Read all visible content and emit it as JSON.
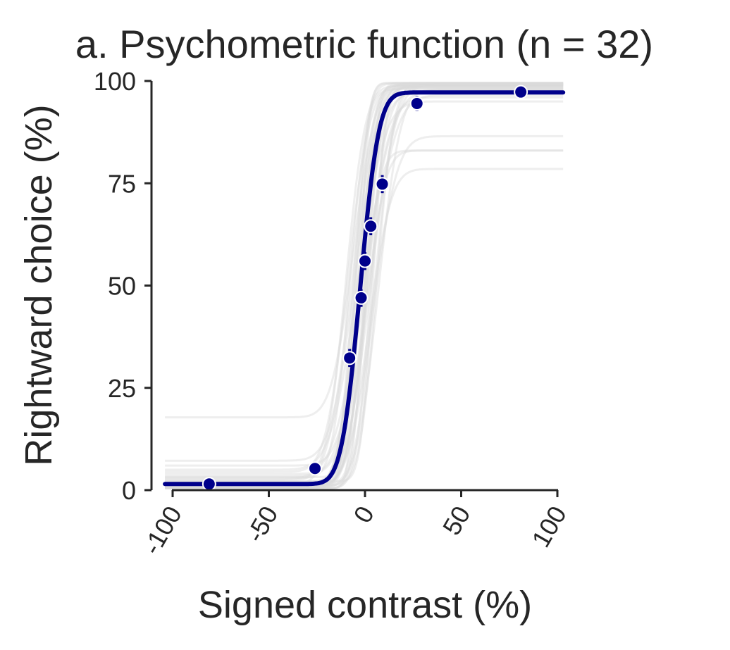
{
  "chart_data": {
    "type": "line",
    "title": "a. Psychometric function (n = 32)",
    "xlabel": "Signed contrast (%)",
    "ylabel": "Rightward choice (%)",
    "xlim": [
      -100,
      100
    ],
    "ylim": [
      0,
      100
    ],
    "xticks": [
      "-100",
      "-50",
      "0",
      "50",
      "100"
    ],
    "yticks": [
      "0",
      "25",
      "50",
      "75",
      "100"
    ],
    "xtick_rotation": -60,
    "grid": false,
    "legend": "none",
    "colors": {
      "mean": "#00008b",
      "individual": "#d9d9d9",
      "axis": "#262626"
    },
    "mean_fit": {
      "mu": -2.5,
      "sigma": 7.6,
      "gamma": 1.5,
      "lambda": 2.8
    },
    "mean_points": {
      "x": [
        -81,
        -26,
        -8,
        -2,
        0,
        3,
        9,
        27,
        81
      ],
      "y": [
        1.5,
        5.3,
        32.3,
        47,
        56,
        64.5,
        74.8,
        94.5,
        97.3
      ],
      "err": [
        1.0,
        1.0,
        2.2,
        2.2,
        2.2,
        2.2,
        2.2,
        1.8,
        1.2
      ]
    },
    "individual_fits": [
      {
        "mu": -6,
        "sigma": 9,
        "gamma": 17.8,
        "lambda": 0.5
      },
      {
        "mu": -5,
        "sigma": 10,
        "gamma": 7.2,
        "lambda": 1.0
      },
      {
        "mu": 2,
        "sigma": 9,
        "gamma": 1.0,
        "lambda": 21.5
      },
      {
        "mu": 0,
        "sigma": 8,
        "gamma": 1.0,
        "lambda": 17.0
      },
      {
        "mu": 4,
        "sigma": 10,
        "gamma": 0.5,
        "lambda": 13.5
      },
      {
        "mu": -1,
        "sigma": 7,
        "gamma": 0.5,
        "lambda": 17.0
      },
      {
        "mu": -3,
        "sigma": 6,
        "gamma": 2.0,
        "lambda": 1.0
      },
      {
        "mu": -5,
        "sigma": 5,
        "gamma": 1.0,
        "lambda": 0.5
      },
      {
        "mu": 0,
        "sigma": 5,
        "gamma": 0.5,
        "lambda": 0.5
      },
      {
        "mu": 3,
        "sigma": 6,
        "gamma": 0.5,
        "lambda": 1.5
      },
      {
        "mu": -8,
        "sigma": 7,
        "gamma": 3.0,
        "lambda": 2.0
      },
      {
        "mu": -2,
        "sigma": 9,
        "gamma": 4.0,
        "lambda": 3.0
      },
      {
        "mu": 5,
        "sigma": 8,
        "gamma": 0.8,
        "lambda": 1.0
      },
      {
        "mu": -4,
        "sigma": 11,
        "gamma": 5.0,
        "lambda": 5.0
      },
      {
        "mu": 1,
        "sigma": 6,
        "gamma": 1.5,
        "lambda": 0.8
      },
      {
        "mu": -10,
        "sigma": 8,
        "gamma": 2.5,
        "lambda": 1.2
      },
      {
        "mu": 7,
        "sigma": 9,
        "gamma": 0.6,
        "lambda": 2.0
      },
      {
        "mu": -6,
        "sigma": 6,
        "gamma": 1.8,
        "lambda": 0.6
      },
      {
        "mu": 2,
        "sigma": 11,
        "gamma": 3.5,
        "lambda": 3.5
      },
      {
        "mu": -3,
        "sigma": 4,
        "gamma": 0.5,
        "lambda": 0.5
      },
      {
        "mu": 0,
        "sigma": 10,
        "gamma": 6.0,
        "lambda": 4.0
      },
      {
        "mu": -7,
        "sigma": 10,
        "gamma": 1.0,
        "lambda": 1.0
      },
      {
        "mu": 4,
        "sigma": 5,
        "gamma": 2.2,
        "lambda": 1.6
      },
      {
        "mu": -1,
        "sigma": 12,
        "gamma": 2.8,
        "lambda": 2.2
      },
      {
        "mu": -9,
        "sigma": 9,
        "gamma": 4.5,
        "lambda": 0.8
      },
      {
        "mu": 6,
        "sigma": 7,
        "gamma": 1.2,
        "lambda": 0.7
      },
      {
        "mu": -2,
        "sigma": 6,
        "gamma": 3.2,
        "lambda": 1.8
      },
      {
        "mu": 1,
        "sigma": 8,
        "gamma": 0.9,
        "lambda": 2.6
      },
      {
        "mu": -5,
        "sigma": 7,
        "gamma": 1.4,
        "lambda": 1.3
      },
      {
        "mu": 3,
        "sigma": 10,
        "gamma": 2.0,
        "lambda": 0.9
      },
      {
        "mu": -4,
        "sigma": 8,
        "gamma": 0.7,
        "lambda": 1.1
      },
      {
        "mu": 0,
        "sigma": 7,
        "gamma": 1.6,
        "lambda": 1.4
      }
    ]
  }
}
